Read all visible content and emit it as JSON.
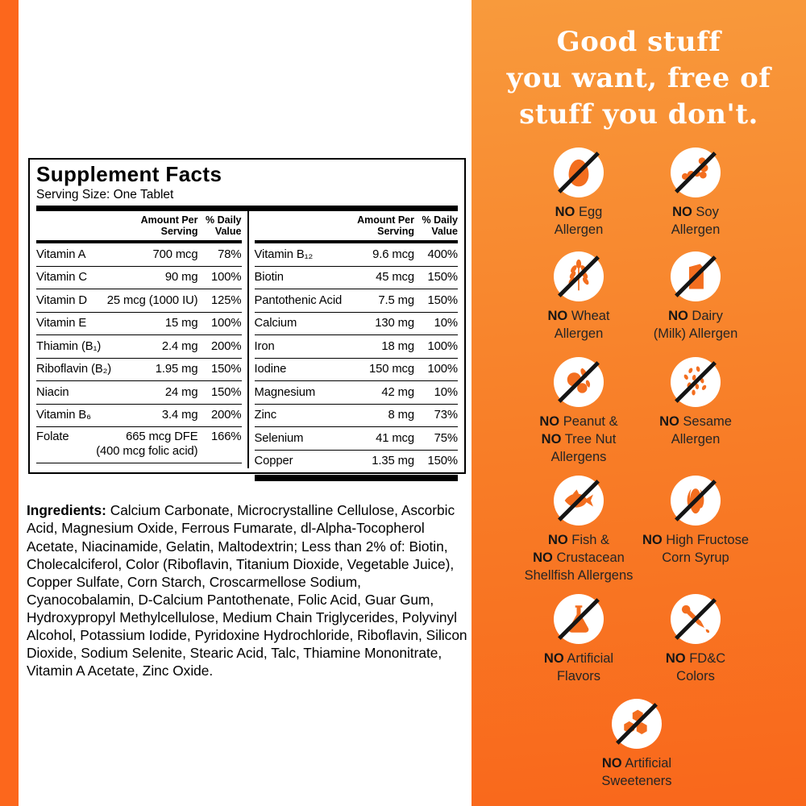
{
  "colors": {
    "strip_orange": "#FC671C",
    "panel_gradient_top": "#F89A3C",
    "panel_gradient_mid": "#F87D27",
    "panel_gradient_bottom": "#F9671B",
    "icon_glyph_orange": "#F36E1F",
    "slash_black": "#151515",
    "heading_white": "#FFFFFF"
  },
  "supplement_facts": {
    "title": "Supplement Facts",
    "serving_size": "Serving Size: One Tablet",
    "header": {
      "amount_line1": "Amount Per",
      "amount_line2": "Serving",
      "dv_line1": "% Daily",
      "dv_line2": "Value"
    },
    "left_rows": [
      {
        "name": "Vitamin A",
        "amount": "700 mcg",
        "dv": "78%"
      },
      {
        "name": "Vitamin C",
        "amount": "90 mg",
        "dv": "100%"
      },
      {
        "name": "Vitamin D",
        "amount": "25 mcg (1000 IU)",
        "dv": "125%"
      },
      {
        "name": "Vitamin E",
        "amount": "15 mg",
        "dv": "100%"
      },
      {
        "name": "Thiamin (B₁)",
        "amount": "2.4 mg",
        "dv": "200%"
      },
      {
        "name": "Riboflavin (B₂)",
        "amount": "1.95 mg",
        "dv": "150%"
      },
      {
        "name": "Niacin",
        "amount": "24 mg",
        "dv": "150%"
      },
      {
        "name": "Vitamin B₆",
        "amount": "3.4 mg",
        "dv": "200%"
      },
      {
        "name": "Folate",
        "amount": "665 mcg DFE",
        "note": "(400 mcg folic acid)",
        "dv": "166%"
      }
    ],
    "right_rows": [
      {
        "name": "Vitamin B₁₂",
        "amount": "9.6 mcg",
        "dv": "400%"
      },
      {
        "name": "Biotin",
        "amount": "45 mcg",
        "dv": "150%"
      },
      {
        "name": "Pantothenic Acid",
        "amount": "7.5 mg",
        "dv": "150%"
      },
      {
        "name": "Calcium",
        "amount": "130 mg",
        "dv": "10%"
      },
      {
        "name": "Iron",
        "amount": "18 mg",
        "dv": "100%"
      },
      {
        "name": "Iodine",
        "amount": "150 mcg",
        "dv": "100%"
      },
      {
        "name": "Magnesium",
        "amount": "42 mg",
        "dv": "10%"
      },
      {
        "name": "Zinc",
        "amount": "8 mg",
        "dv": "73%"
      },
      {
        "name": "Selenium",
        "amount": "41 mcg",
        "dv": "75%"
      },
      {
        "name": "Copper",
        "amount": "1.35 mg",
        "dv": "150%"
      }
    ]
  },
  "ingredients": {
    "label": "Ingredients:",
    "text": " Calcium Carbonate, Microcrystalline Cellulose, Ascorbic Acid, Magnesium Oxide, Ferrous Fumarate, dl-Alpha-Tocopherol Acetate, Niacinamide, Gelatin, Maltodextrin; Less than 2% of: Biotin, Cholecalciferol, Color (Riboflavin, Titanium Dioxide, Vegetable Juice), Copper Sulfate, Corn Starch, Croscarmellose Sodium, Cyanocobalamin, D-Calcium Pantothenate, Folic Acid, Guar Gum, Hydroxypropyl Methylcellulose, Medium Chain Triglycerides, Polyvinyl Alcohol, Potassium Iodide, Pyridoxine Hydrochloride, Riboflavin, Silicon Dioxide, Sodium Selenite, Stearic Acid, Talc, Thiamine Mononitrate, Vitamin A Acetate, Zinc Oxide."
  },
  "panel": {
    "heading_lines": [
      "Good stuff",
      "you want, free of",
      "stuff you don't."
    ],
    "badges": [
      {
        "icon": "egg-icon",
        "lines": [
          {
            "no": "NO",
            "text": " Egg"
          },
          {
            "no": "",
            "text": "Allergen"
          }
        ]
      },
      {
        "icon": "soybean-icon",
        "lines": [
          {
            "no": "NO",
            "text": " Soy"
          },
          {
            "no": "",
            "text": "Allergen"
          }
        ]
      },
      {
        "icon": "wheat-icon",
        "lines": [
          {
            "no": "NO",
            "text": " Wheat"
          },
          {
            "no": "",
            "text": "Allergen"
          }
        ]
      },
      {
        "icon": "milk-carton-icon",
        "lines": [
          {
            "no": "NO",
            "text": " Dairy"
          },
          {
            "no": "",
            "text": "(Milk) Allergen"
          }
        ]
      },
      {
        "icon": "peanut-icon",
        "lines": [
          {
            "no": "NO",
            "text": " Peanut &"
          },
          {
            "no": "NO",
            "text": " Tree Nut"
          },
          {
            "no": "",
            "text": "Allergens"
          }
        ]
      },
      {
        "icon": "sesame-icon",
        "lines": [
          {
            "no": "NO",
            "text": " Sesame"
          },
          {
            "no": "",
            "text": "Allergen"
          }
        ]
      },
      {
        "icon": "fish-icon",
        "lines": [
          {
            "no": "NO",
            "text": " Fish &"
          },
          {
            "no": "NO",
            "text": " Crustacean"
          },
          {
            "no": "",
            "text": "Shellfish Allergens"
          }
        ]
      },
      {
        "icon": "corn-icon",
        "lines": [
          {
            "no": "NO",
            "text": " High Fructose"
          },
          {
            "no": "",
            "text": "Corn Syrup"
          }
        ]
      },
      {
        "icon": "flask-icon",
        "lines": [
          {
            "no": "NO",
            "text": " Artificial"
          },
          {
            "no": "",
            "text": "Flavors"
          }
        ]
      },
      {
        "icon": "dropper-icon",
        "lines": [
          {
            "no": "NO",
            "text": " FD&C"
          },
          {
            "no": "",
            "text": "Colors"
          }
        ]
      },
      {
        "icon": "honeycomb-icon",
        "lines": [
          {
            "no": "NO",
            "text": " Artificial"
          },
          {
            "no": "",
            "text": "Sweeteners"
          }
        ]
      }
    ]
  }
}
